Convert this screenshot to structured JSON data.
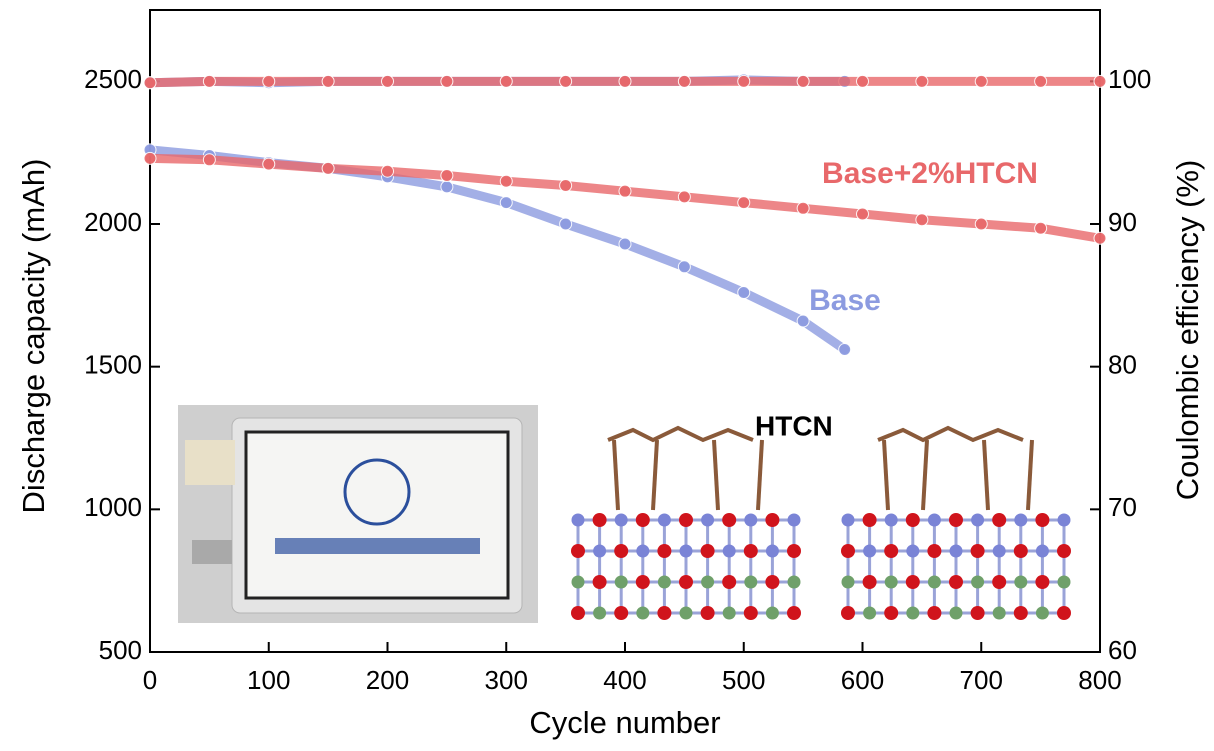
{
  "chart_data": {
    "type": "scatter",
    "x_label": "Cycle number",
    "y_label": "Discharge capacity (mAh)",
    "y2_label": "Coulombic efficiency (%)",
    "xlim": [
      0,
      800
    ],
    "xticks": [
      0,
      100,
      200,
      300,
      400,
      500,
      600,
      700,
      800
    ],
    "ylim": [
      500,
      2750
    ],
    "yticks": [
      500,
      1000,
      1500,
      2000,
      2500
    ],
    "y2lim": [
      60,
      105
    ],
    "y2ticks": [
      60,
      70,
      80,
      90,
      100
    ],
    "annotations": [
      "HTCN"
    ],
    "series": [
      {
        "name": "Base",
        "color": "#8c9be0",
        "x": [
          0,
          50,
          100,
          150,
          200,
          250,
          300,
          350,
          400,
          450,
          500,
          550,
          585
        ],
        "values": [
          2260,
          2240,
          2215,
          2195,
          2165,
          2130,
          2075,
          2000,
          1930,
          1850,
          1760,
          1660,
          1560
        ]
      },
      {
        "name": "Base+2%HTCN",
        "color": "#e8686a",
        "x": [
          0,
          50,
          100,
          150,
          200,
          250,
          300,
          350,
          400,
          450,
          500,
          550,
          600,
          650,
          700,
          750,
          800
        ],
        "values": [
          2230,
          2225,
          2210,
          2195,
          2185,
          2170,
          2150,
          2135,
          2115,
          2095,
          2075,
          2055,
          2035,
          2015,
          2000,
          1985,
          1950
        ]
      },
      {
        "color": "#8c9be0",
        "axis": "y2",
        "x": [
          0,
          50,
          100,
          150,
          200,
          250,
          300,
          350,
          400,
          450,
          500,
          550,
          585
        ],
        "values": [
          99.9,
          100,
          99.9,
          100,
          100,
          100,
          100,
          100,
          100,
          100,
          100.1,
          100,
          100
        ]
      },
      {
        "color": "#e8686a",
        "axis": "y2",
        "x": [
          0,
          50,
          100,
          150,
          200,
          250,
          300,
          350,
          400,
          450,
          500,
          550,
          600,
          650,
          700,
          750,
          800
        ],
        "values": [
          99.9,
          100,
          100,
          100,
          100,
          100,
          100,
          100,
          100,
          100,
          100,
          100,
          100,
          100,
          100,
          100,
          100
        ]
      }
    ]
  }
}
